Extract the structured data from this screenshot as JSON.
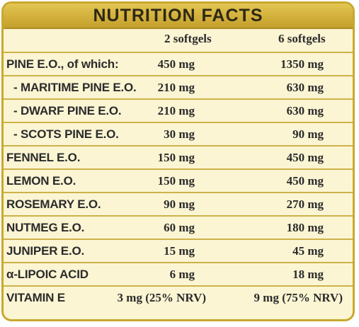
{
  "title": "NUTRITION FACTS",
  "columns": [
    "2 softgels",
    "6 softgels"
  ],
  "rows": [
    {
      "name": "PINE E.O., of which:",
      "v1": "450 mg",
      "v2": "1350 mg"
    },
    {
      "name": "- MARITIME PINE E.O.",
      "v1": "210 mg",
      "v2": "630 mg"
    },
    {
      "name": "- DWARF PINE E.O.",
      "v1": "210 mg",
      "v2": "630 mg"
    },
    {
      "name": "- SCOTS PINE E.O.",
      "v1": "30 mg",
      "v2": "90 mg"
    },
    {
      "name": "FENNEL E.O.",
      "v1": "150 mg",
      "v2": "450 mg"
    },
    {
      "name": "LEMON E.O.",
      "v1": "150 mg",
      "v2": "450 mg"
    },
    {
      "name": "ROSEMARY E.O.",
      "v1": "90 mg",
      "v2": "270 mg"
    },
    {
      "name": "NUTMEG E.O.",
      "v1": "60 mg",
      "v2": "180 mg"
    },
    {
      "name": "JUNIPER E.O.",
      "v1": "15 mg",
      "v2": "45 mg"
    },
    {
      "name": "α-LIPOIC ACID",
      "v1": "6 mg",
      "v2": "18 mg"
    },
    {
      "name": "VITAMIN E",
      "v1": "3 mg (25% NRV)",
      "v2": "9 mg (75% NRV)"
    }
  ],
  "colors": {
    "accent": "#d2b03b",
    "background": "#fbf5d3",
    "border": "#c9a82c"
  }
}
